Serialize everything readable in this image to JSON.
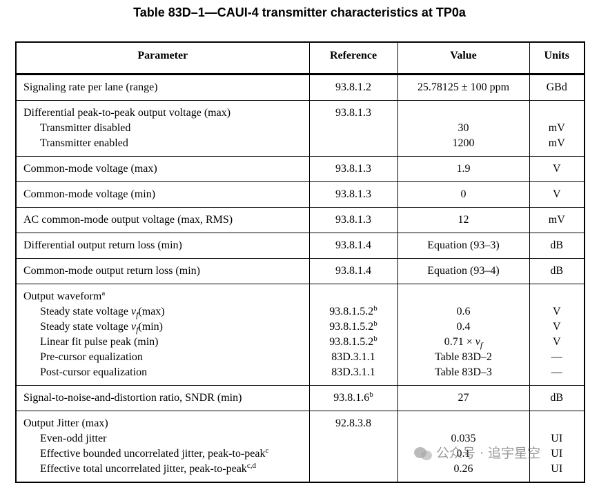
{
  "title": "Table 83D–1—CAUI-4 transmitter characteristics at TP0a",
  "table": {
    "header": [
      "Parameter",
      "Reference",
      "Value",
      "Units"
    ],
    "rows": [
      {
        "lines": [
          {
            "parameter": "Signaling rate per lane (range)",
            "reference": "93.8.1.2",
            "value": "25.78125 ± 100 ppm",
            "units": "GBd"
          }
        ]
      },
      {
        "lines": [
          {
            "parameter": "Differential peak-to-peak output voltage (max)",
            "reference": "93.8.1.3"
          },
          {
            "parameter": "Transmitter disabled",
            "value": "30",
            "units": "mV"
          },
          {
            "parameter": "Transmitter enabled",
            "value": "1200",
            "units": "mV"
          }
        ]
      },
      {
        "lines": [
          {
            "parameter": "Common-mode voltage (max)",
            "reference": "93.8.1.3",
            "value": "1.9",
            "units": "V"
          }
        ]
      },
      {
        "lines": [
          {
            "parameter": "Common-mode voltage (min)",
            "reference": "93.8.1.3",
            "value": "0",
            "units": "V"
          }
        ]
      },
      {
        "lines": [
          {
            "parameter": "AC common-mode output voltage (max, RMS)",
            "reference": "93.8.1.3",
            "value": "12",
            "units": "mV"
          }
        ]
      },
      {
        "lines": [
          {
            "parameter": "Differential output return loss (min)",
            "reference": "93.8.1.4",
            "value": "Equation (93–3)",
            "units": "dB"
          }
        ]
      },
      {
        "lines": [
          {
            "parameter": "Common-mode output return loss (min)",
            "reference": "93.8.1.4",
            "value": "Equation (93–4)",
            "units": "dB"
          }
        ]
      },
      {
        "lines": [
          {
            "parameter": [
              "Output waveform",
              {
                "sup": "a"
              }
            ]
          },
          {
            "parameter": [
              "Steady state voltage ",
              {
                "var": "v"
              },
              {
                "sub": "f"
              },
              "(max)"
            ],
            "reference": [
              "93.8.1.5.2",
              {
                "sup": "b"
              }
            ],
            "value": "0.6",
            "units": "V"
          },
          {
            "parameter": [
              "Steady state voltage ",
              {
                "var": "v"
              },
              {
                "sub": "f"
              },
              "(min)"
            ],
            "reference": [
              "93.8.1.5.2",
              {
                "sup": "b"
              }
            ],
            "value": "0.4",
            "units": "V"
          },
          {
            "parameter": "Linear fit pulse peak (min)",
            "reference": [
              "93.8.1.5.2",
              {
                "sup": "b"
              }
            ],
            "value": [
              "0.71 × ",
              {
                "var": "v"
              },
              {
                "sub": "f"
              }
            ],
            "units": "V"
          },
          {
            "parameter": "Pre-cursor equalization",
            "reference": "83D.3.1.1",
            "value": "Table 83D–2",
            "units": "—"
          },
          {
            "parameter": "Post-cursor equalization",
            "reference": "83D.3.1.1",
            "value": "Table 83D–3",
            "units": "—"
          }
        ]
      },
      {
        "lines": [
          {
            "parameter": "Signal-to-noise-and-distortion ratio, SNDR (min)",
            "reference": [
              "93.8.1.6",
              {
                "sup": "b"
              }
            ],
            "value": "27",
            "units": "dB"
          }
        ]
      },
      {
        "lines": [
          {
            "parameter": "Output Jitter (max)",
            "reference": "92.8.3.8"
          },
          {
            "parameter": "Even-odd jitter",
            "value": "0.035",
            "units": "UI"
          },
          {
            "parameter": [
              "Effective bounded uncorrelated jitter, peak-to-peak",
              {
                "sup": "c"
              }
            ],
            "value": "0.1",
            "units": "UI"
          },
          {
            "parameter": [
              "Effective total uncorrelated jitter, peak-to-peak",
              {
                "sup": "c,d"
              }
            ],
            "value": "0.26",
            "units": "UI"
          }
        ]
      }
    ]
  },
  "watermark": "公众号 · 追宇星空"
}
